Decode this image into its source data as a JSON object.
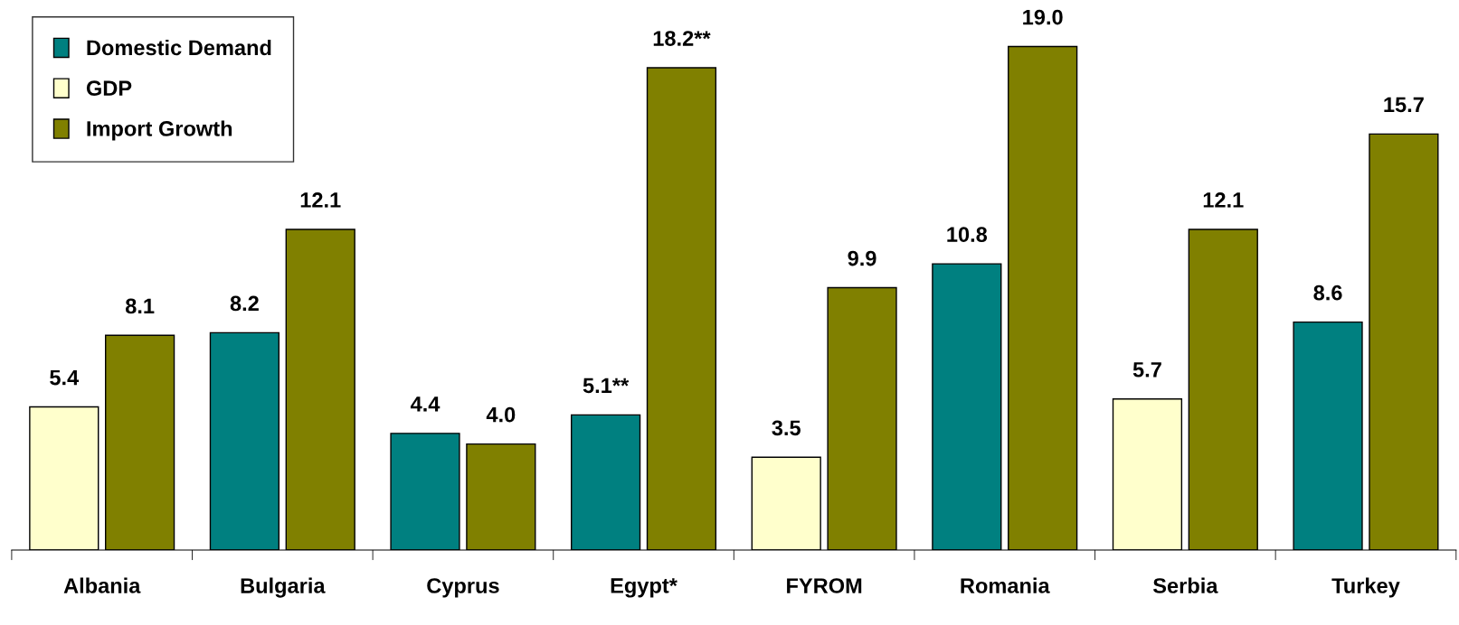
{
  "chart_data": {
    "type": "bar",
    "categories": [
      "Albania",
      "Bulgaria",
      "Cyprus",
      "Egypt*",
      "FYROM",
      "Romania",
      "Serbia",
      "Turkey"
    ],
    "series": [
      {
        "name": "Domestic Demand",
        "color": "#008080",
        "values": [
          null,
          8.2,
          4.4,
          5.1,
          null,
          10.8,
          null,
          8.6
        ],
        "value_labels": [
          null,
          "8.2",
          "4.4",
          "5.1**",
          null,
          "10.8",
          null,
          "8.6"
        ]
      },
      {
        "name": "GDP",
        "color": "#ffffcc",
        "values": [
          5.4,
          null,
          null,
          null,
          3.5,
          null,
          5.7,
          null
        ],
        "value_labels": [
          "5.4",
          null,
          null,
          null,
          "3.5",
          null,
          "5.7",
          null
        ]
      },
      {
        "name": "Import Growth",
        "color": "#808000",
        "values": [
          8.1,
          12.1,
          4.0,
          18.2,
          9.9,
          19.0,
          12.1,
          15.7
        ],
        "value_labels": [
          "8.1",
          "12.1",
          "4.0",
          "18.2**",
          "9.9",
          "19.0",
          "12.1",
          "15.7"
        ]
      }
    ],
    "legend": "top left",
    "grid": false
  }
}
